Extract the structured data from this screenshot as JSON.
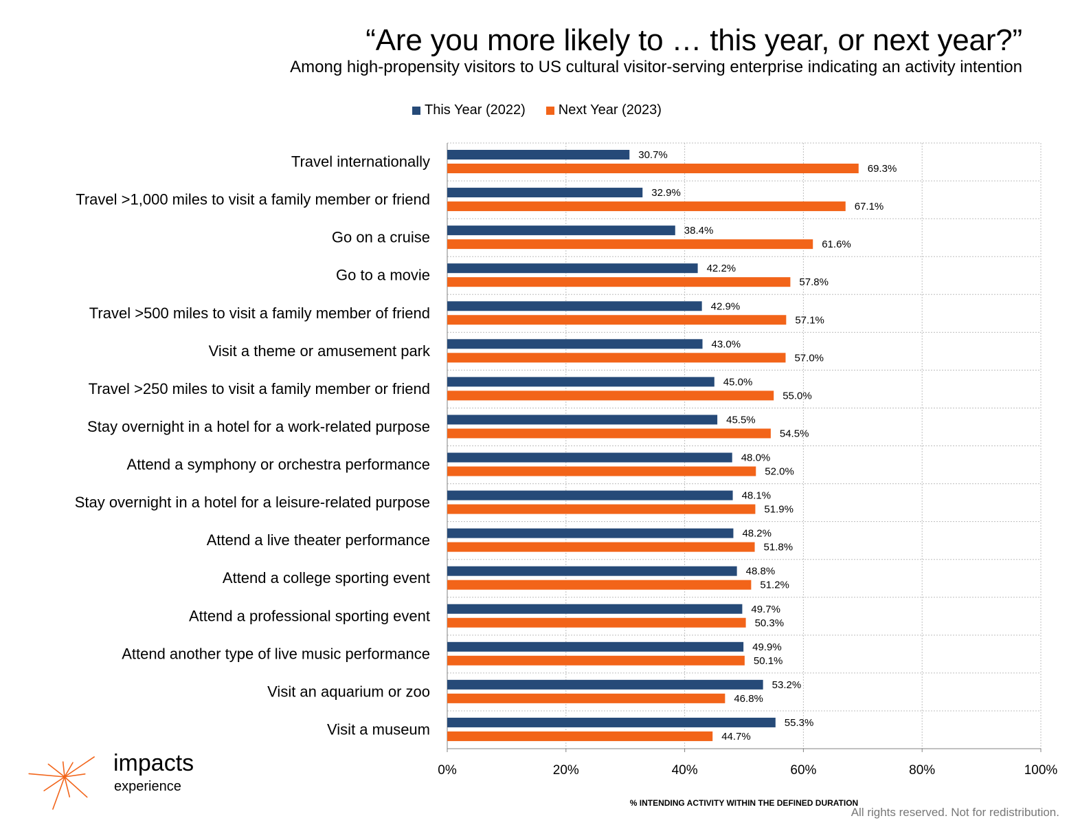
{
  "chart_data": {
    "type": "bar",
    "orientation": "horizontal",
    "title": "“Are you more likely to … this year, or next year?”",
    "subtitle": "Among high-propensity visitors to US cultural visitor-serving enterprise indicating an activity intention",
    "xlabel": "% INTENDING ACTIVITY WITHIN THE DEFINED DURATION",
    "ylabel": "",
    "xlim": [
      0,
      100
    ],
    "x_ticks": [
      "0%",
      "20%",
      "40%",
      "60%",
      "80%",
      "100%"
    ],
    "grid": true,
    "legend_position": "top",
    "categories": [
      "Travel internationally",
      "Travel >1,000 miles to visit a family member or friend",
      "Go on a cruise",
      "Go to a movie",
      "Travel >500 miles to visit a family member of friend",
      "Visit a theme or amusement park",
      "Travel >250 miles to visit a family member or friend",
      "Stay overnight in a hotel for a work-related purpose",
      "Attend a symphony or orchestra performance",
      "Stay overnight in a hotel for a leisure-related purpose",
      "Attend a live theater performance",
      "Attend a college sporting event",
      "Attend a professional sporting event",
      "Attend another type of live music performance",
      "Visit an aquarium or zoo",
      "Visit a museum"
    ],
    "series": [
      {
        "name": "This Year (2022)",
        "color": "#264a78",
        "values": [
          30.7,
          32.9,
          38.4,
          42.2,
          42.9,
          43.0,
          45.0,
          45.5,
          48.0,
          48.1,
          48.2,
          48.8,
          49.7,
          49.9,
          53.2,
          55.3
        ],
        "labels": [
          "30.7%",
          "32.9%",
          "38.4%",
          "42.2%",
          "42.9%",
          "43.0%",
          "45.0%",
          "45.5%",
          "48.0%",
          "48.1%",
          "48.2%",
          "48.8%",
          "49.7%",
          "49.9%",
          "53.2%",
          "55.3%"
        ]
      },
      {
        "name": "Next Year (2023)",
        "color": "#f26419",
        "values": [
          69.3,
          67.1,
          61.6,
          57.8,
          57.1,
          57.0,
          55.0,
          54.5,
          52.0,
          51.9,
          51.8,
          51.2,
          50.3,
          50.1,
          46.8,
          44.7
        ],
        "labels": [
          "69.3%",
          "67.1%",
          "61.6%",
          "57.8%",
          "57.1%",
          "57.0%",
          "55.0%",
          "54.5%",
          "52.0%",
          "51.9%",
          "51.8%",
          "51.2%",
          "50.3%",
          "50.1%",
          "46.8%",
          "44.7%"
        ]
      }
    ]
  },
  "brand": {
    "name": "impacts",
    "sub": "experience",
    "color": "#f26419"
  },
  "footer": "All rights reserved. Not for redistribution."
}
